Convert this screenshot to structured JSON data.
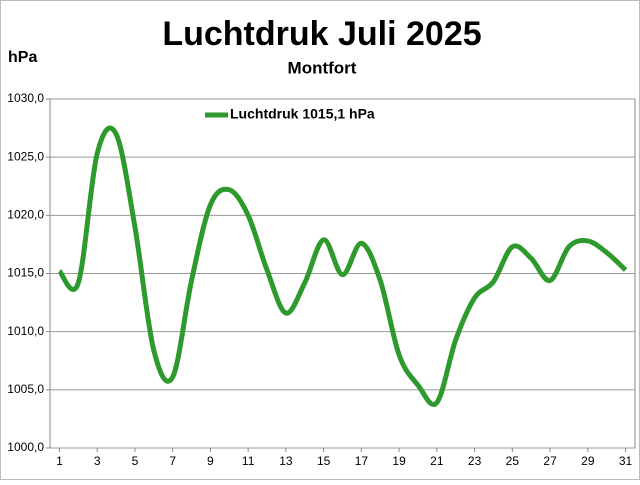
{
  "chart_data": {
    "type": "line",
    "title": "Luchtdruk Juli 2025",
    "subtitle": "Montfort",
    "y_label": "hPa",
    "x": [
      1,
      2,
      3,
      4,
      5,
      6,
      7,
      8,
      9,
      10,
      11,
      12,
      13,
      14,
      15,
      16,
      17,
      18,
      19,
      20,
      21,
      22,
      23,
      24,
      25,
      26,
      27,
      28,
      29,
      30,
      31
    ],
    "series": [
      {
        "name": "Luchtdruk 1015,1 hPa",
        "color": "#2e9a2e",
        "values": [
          1015.2,
          1014.2,
          1025.3,
          1027.0,
          1019.0,
          1008.4,
          1006.1,
          1014.4,
          1020.9,
          1022.2,
          1020.0,
          1015.3,
          1011.6,
          1014.2,
          1017.9,
          1014.9,
          1017.6,
          1014.4,
          1008.0,
          1005.4,
          1003.9,
          1009.3,
          1012.9,
          1014.3,
          1017.3,
          1016.3,
          1014.4,
          1017.3,
          1017.8,
          1016.8,
          1015.3
        ]
      }
    ],
    "xlim": [
      0.5,
      31.5
    ],
    "xticks": [
      1,
      3,
      5,
      7,
      9,
      11,
      13,
      15,
      17,
      19,
      21,
      23,
      25,
      27,
      29,
      31
    ],
    "ylim": [
      1000,
      1030
    ],
    "yticks": [
      {
        "value": 1000,
        "label": "1000,0"
      },
      {
        "value": 1005,
        "label": "1005,0"
      },
      {
        "value": 1010,
        "label": "1010,0"
      },
      {
        "value": 1015,
        "label": "1015,0"
      },
      {
        "value": 1020,
        "label": "1020,0"
      },
      {
        "value": 1025,
        "label": "1025,0"
      },
      {
        "value": 1030,
        "label": "1030,0"
      }
    ],
    "grid": true
  }
}
